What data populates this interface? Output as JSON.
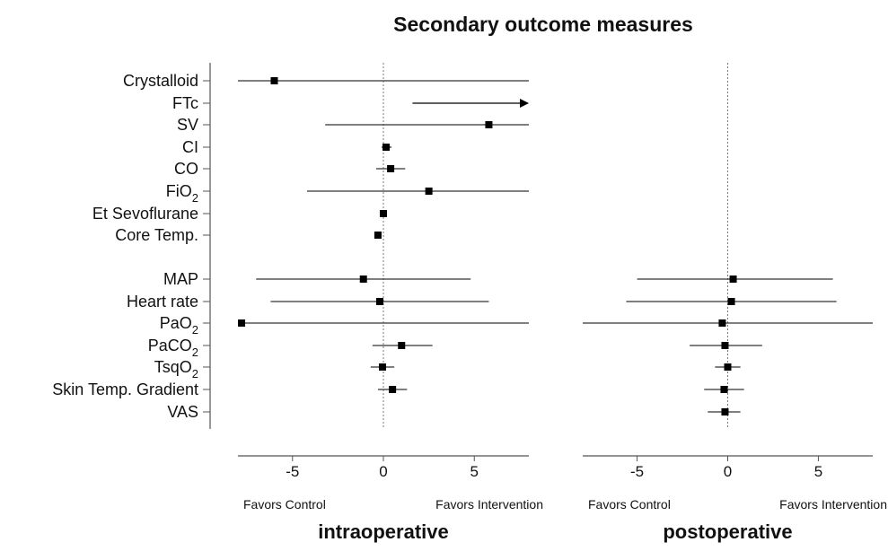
{
  "chart_data": {
    "type": "forest",
    "title": "Secondary outcome measures",
    "rows": [
      {
        "label": "Crystalloid",
        "sub": ""
      },
      {
        "label": "FTc",
        "sub": ""
      },
      {
        "label": "SV",
        "sub": ""
      },
      {
        "label": "CI",
        "sub": ""
      },
      {
        "label": "CO",
        "sub": ""
      },
      {
        "label": "FiO",
        "sub": "2"
      },
      {
        "label": "Et Sevoflurane",
        "sub": ""
      },
      {
        "label": "Core Temp.",
        "sub": ""
      },
      {
        "label": "MAP",
        "sub": ""
      },
      {
        "label": "Heart rate",
        "sub": ""
      },
      {
        "label": "PaO",
        "sub": "2"
      },
      {
        "label": "PaCO",
        "sub": "2"
      },
      {
        "label": "TsqO",
        "sub": "2"
      },
      {
        "label": "Skin Temp. Gradient",
        "sub": ""
      },
      {
        "label": "VAS",
        "sub": ""
      }
    ],
    "panels": [
      {
        "name": "intraoperative",
        "xlim": [
          -8,
          8
        ],
        "ticks": [
          -5,
          0,
          5
        ],
        "favors_left": "Favors Control",
        "favors_right": "Favors Intervention",
        "estimates": [
          {
            "row": "Crystalloid",
            "est": -6,
            "lo": -8,
            "hi": 8,
            "clip_lo": true,
            "clip_hi": true
          },
          {
            "row": "FTc",
            "est": null,
            "lo": 1.6,
            "hi": 8,
            "arrow": "right"
          },
          {
            "row": "SV",
            "est": 5.8,
            "lo": -3.2,
            "hi": 8,
            "clip_hi": true
          },
          {
            "row": "CI",
            "est": 0.15,
            "lo": -0.1,
            "hi": 0.45
          },
          {
            "row": "CO",
            "est": 0.4,
            "lo": -0.4,
            "hi": 1.2
          },
          {
            "row": "FiO2",
            "est": 2.5,
            "lo": -4.2,
            "hi": 8,
            "clip_hi": true
          },
          {
            "row": "Et Sevoflurane",
            "est": 0,
            "lo": -0.1,
            "hi": 0.1
          },
          {
            "row": "Core Temp.",
            "est": -0.3,
            "lo": -0.45,
            "hi": -0.15
          },
          {
            "row": "MAP",
            "est": -1.1,
            "lo": -7,
            "hi": 4.8
          },
          {
            "row": "Heart rate",
            "est": -0.2,
            "lo": -6.2,
            "hi": 5.8
          },
          {
            "row": "PaO2",
            "est": -7.8,
            "lo": -8,
            "hi": 8,
            "clip_lo": true,
            "clip_hi": true
          },
          {
            "row": "PaCO2",
            "est": 1.0,
            "lo": -0.6,
            "hi": 2.7
          },
          {
            "row": "TsqO2",
            "est": -0.05,
            "lo": -0.7,
            "hi": 0.6
          },
          {
            "row": "Skin Temp. Gradient",
            "est": 0.5,
            "lo": -0.3,
            "hi": 1.3
          },
          {
            "row": "VAS",
            "est": null
          }
        ]
      },
      {
        "name": "postoperative",
        "xlim": [
          -8,
          8
        ],
        "ticks": [
          -5,
          0,
          5
        ],
        "favors_left": "Favors Control",
        "favors_right": "Favors Intervention",
        "estimates": [
          {
            "row": "MAP",
            "est": 0.3,
            "lo": -5,
            "hi": 5.8
          },
          {
            "row": "Heart rate",
            "est": 0.2,
            "lo": -5.6,
            "hi": 6
          },
          {
            "row": "PaO2",
            "est": -0.3,
            "lo": -8,
            "hi": 8,
            "clip_lo": true,
            "clip_hi": true
          },
          {
            "row": "PaCO2",
            "est": -0.15,
            "lo": -2.1,
            "hi": 1.9
          },
          {
            "row": "TsqO2",
            "est": 0,
            "lo": -0.7,
            "hi": 0.7
          },
          {
            "row": "Skin Temp. Gradient",
            "est": -0.2,
            "lo": -1.3,
            "hi": 0.9
          },
          {
            "row": "VAS",
            "est": -0.15,
            "lo": -1.1,
            "hi": 0.7
          }
        ]
      }
    ]
  }
}
